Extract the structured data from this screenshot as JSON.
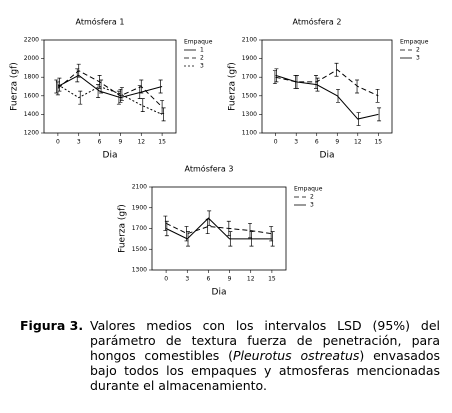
{
  "chart_data": [
    {
      "type": "line",
      "title": "Atmósfera 1",
      "x_label": "Dia",
      "y_label": "Fuerza (gf)",
      "legend_title": "Empaque",
      "x": [
        0,
        3,
        6,
        9,
        12,
        15
      ],
      "xlim": [
        -2,
        17
      ],
      "xticks": [
        0,
        3,
        6,
        9,
        12,
        15
      ],
      "ylim": [
        1200,
        2200
      ],
      "yticks": [
        1200,
        1400,
        1600,
        1800,
        2000,
        2200
      ],
      "series": [
        {
          "name": "1",
          "color": "#000000",
          "dash": "none",
          "values": [
            1700,
            1820,
            1650,
            1580,
            1640,
            1700
          ],
          "errors": [
            70,
            70,
            70,
            70,
            70,
            70
          ]
        },
        {
          "name": "2",
          "color": "#000000",
          "dash": "5,3",
          "values": [
            1680,
            1870,
            1750,
            1600,
            1700,
            1480
          ],
          "errors": [
            70,
            70,
            70,
            70,
            70,
            70
          ]
        },
        {
          "name": "3",
          "color": "#000000",
          "dash": "2,2",
          "values": [
            1720,
            1580,
            1700,
            1620,
            1500,
            1400
          ],
          "errors": [
            70,
            70,
            70,
            70,
            70,
            70
          ]
        }
      ]
    },
    {
      "type": "line",
      "title": "Atmósfera 2",
      "x_label": "Dia",
      "y_label": "Fuerza (gf)",
      "legend_title": "Empaque",
      "x": [
        0,
        3,
        6,
        9,
        12,
        15
      ],
      "xlim": [
        -2,
        17
      ],
      "xticks": [
        0,
        3,
        6,
        9,
        12,
        15
      ],
      "ylim": [
        1100,
        2100
      ],
      "yticks": [
        1100,
        1300,
        1500,
        1700,
        1900,
        2100
      ],
      "series": [
        {
          "name": "2",
          "color": "#000000",
          "dash": "5,3",
          "values": [
            1700,
            1650,
            1650,
            1780,
            1600,
            1500
          ],
          "errors": [
            70,
            70,
            70,
            70,
            70,
            70
          ]
        },
        {
          "name": "3",
          "color": "#000000",
          "dash": "none",
          "values": [
            1720,
            1650,
            1620,
            1500,
            1250,
            1300
          ],
          "errors": [
            70,
            70,
            70,
            70,
            70,
            70
          ]
        }
      ]
    },
    {
      "type": "line",
      "title": "Atmósfera 3",
      "x_label": "Dia",
      "y_label": "Fuerza (gf)",
      "legend_title": "Empaque",
      "x": [
        0,
        3,
        6,
        9,
        12,
        15
      ],
      "xlim": [
        -2,
        17
      ],
      "xticks": [
        0,
        3,
        6,
        9,
        12,
        15
      ],
      "ylim": [
        1300,
        2100
      ],
      "yticks": [
        1300,
        1500,
        1700,
        1900,
        2100
      ],
      "series": [
        {
          "name": "2",
          "color": "#000000",
          "dash": "5,3",
          "values": [
            1750,
            1650,
            1720,
            1700,
            1680,
            1650
          ],
          "errors": [
            70,
            70,
            70,
            70,
            70,
            70
          ]
        },
        {
          "name": "3",
          "color": "#000000",
          "dash": "none",
          "values": [
            1700,
            1600,
            1800,
            1600,
            1600,
            1600
          ],
          "errors": [
            70,
            70,
            70,
            70,
            70,
            70
          ]
        }
      ]
    }
  ],
  "caption": {
    "label": "Figura 3.",
    "text": [
      "Valores medios con los intervalos LSD (95%) del parámetro de textura fuerza de penetración, para hongos comestibles (",
      "Pleurotus ostreatus",
      ") envasados bajo todos los empaques y atmosferas mencionadas durante el almacenamiento."
    ]
  }
}
